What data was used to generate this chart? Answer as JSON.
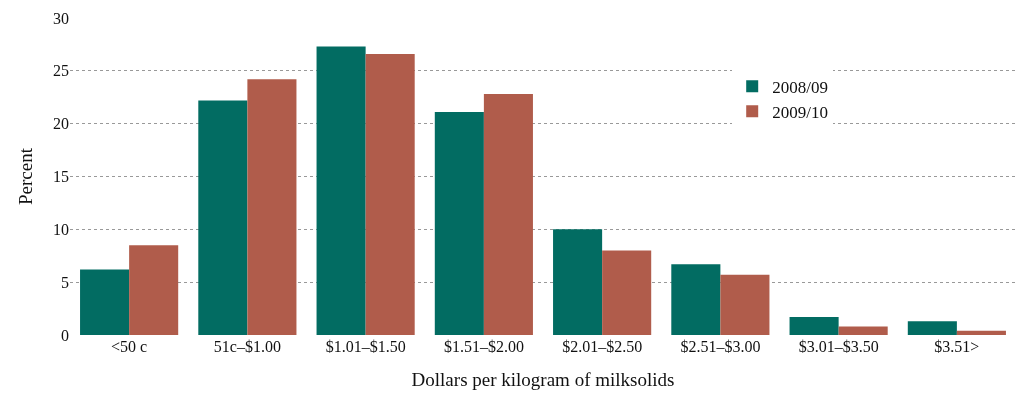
{
  "chart_data": {
    "type": "bar",
    "xlabel": "Dollars per kilogram of milksolids",
    "ylabel": "Percent",
    "categories": [
      "<50 c",
      "51c–$1.00",
      "$1.01–$1.50",
      "$1.51–$2.00",
      "$2.01–$2.50",
      "$2.51–$3.00",
      "$3.01–$3.50",
      "$3.51>"
    ],
    "series": [
      {
        "name": "2008/09",
        "color": "#026c62",
        "values": [
          6.2,
          22.2,
          27.3,
          21.1,
          10.0,
          6.7,
          1.7,
          1.3
        ]
      },
      {
        "name": "2009/10",
        "color": "#b05c4b",
        "values": [
          8.5,
          24.2,
          26.6,
          22.8,
          8.0,
          5.7,
          0.8,
          0.4
        ]
      }
    ],
    "ylim": [
      0,
      30
    ],
    "yticks": [
      0,
      5,
      10,
      15,
      20,
      25,
      30
    ],
    "grid": "y",
    "legend": "top right"
  }
}
